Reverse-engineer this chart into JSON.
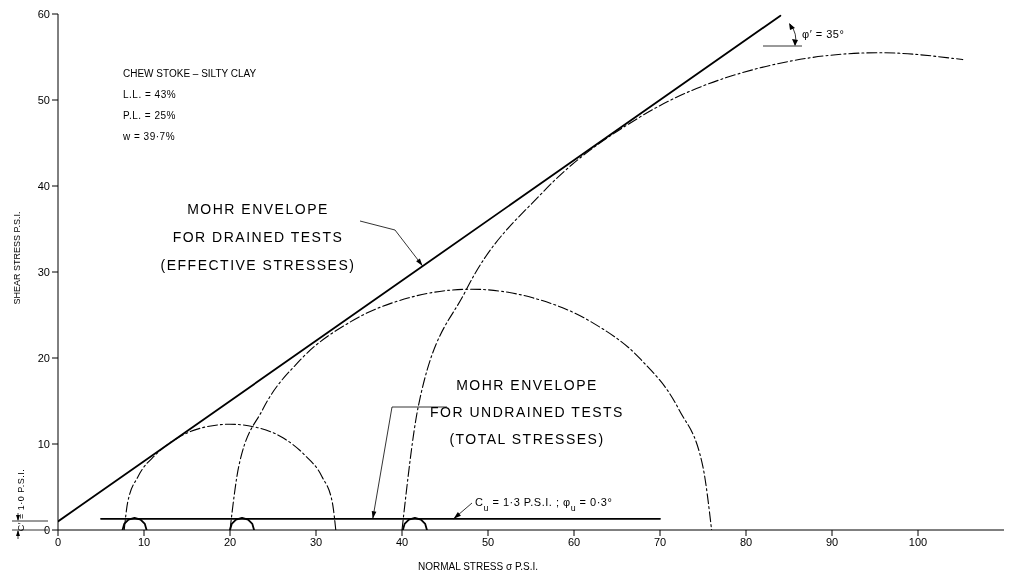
{
  "chart_data": {
    "type": "line",
    "title": "CHEW STOKE – SILTY CLAY",
    "xlabel": "NORMAL STRESS  σ  P.S.I.",
    "ylabel": "SHEAR STRESS  P.S.I.",
    "xlim": [
      0,
      110
    ],
    "xticks": [
      0,
      10,
      20,
      30,
      40,
      50,
      60,
      70,
      80,
      90,
      100
    ],
    "ylim": [
      0,
      60
    ],
    "yticks": [
      0,
      10,
      20,
      30,
      40,
      50,
      60
    ],
    "grid": false,
    "annotations": [
      "L.L. = 43%",
      "P.L. = 25%",
      "w  = 39·7%",
      {
        "text": "MOHR ENVELOPE\nFOR DRAINED TESTS\n(EFFECTIVE STRESSES)",
        "x": 42.4,
        "y": 30.7
      },
      {
        "text": "MOHR ENVELOPE\nFOR UNDRAINED TESTS\n(TOTAL STRESSES)",
        "x": 36.6,
        "y": 1.3
      },
      "φ′ = 35°",
      {
        "text": "C$_{u}$ = 1·3 P.S.I. ;  φ$_{u}$ = 0·3°",
        "x": 46,
        "y": 1.3
      },
      "C′ = 1·0 P.S.I."
    ],
    "series": [
      {
        "color": "#000000",
        "line_style": "solid",
        "x": [
          0,
          84
        ],
        "values": [
          1.0,
          59.8
        ]
      },
      {
        "color": "#000000",
        "line_style": "solid",
        "x": [
          5,
          70
        ],
        "values": [
          1.3,
          1.3
        ]
      },
      {
        "color": "#000000",
        "line_style": "dashed",
        "x": [
          7.7,
          8.1,
          9.3,
          11.3,
          13.9,
          16.8,
          20,
          23.2,
          26.2,
          28.7,
          30.7,
          31.9,
          32.3
        ],
        "values": [
          0,
          3.2,
          6.2,
          8.7,
          10.7,
          11.9,
          12.3,
          11.9,
          10.7,
          8.7,
          6.2,
          3.2,
          0
        ]
      },
      {
        "color": "#000000",
        "line_style": "dashed",
        "x": [
          20,
          21.0,
          23.8,
          28.2,
          34,
          40.8,
          48,
          55.2,
          62,
          67.8,
          72.2,
          75.0,
          76
        ],
        "values": [
          0,
          7.3,
          14,
          19.8,
          24.2,
          27.0,
          28,
          27.0,
          24.2,
          19.8,
          14,
          7.3,
          0
        ]
      },
      {
        "color": "#000000",
        "line_style": "dashed",
        "x": [
          40,
          41.9,
          47.4,
          56.3,
          67.8,
          81.1,
          95.5,
          105.2
        ],
        "values": [
          0,
          14.4,
          27.8,
          39.2,
          48.1,
          53.6,
          55.5,
          54.7
        ]
      },
      {
        "color": "#000000",
        "line_style": "solid",
        "x": [
          7.5,
          7.7,
          8.2,
          8.9,
          9.6,
          10.1,
          10.3
        ],
        "values": [
          0,
          0.7,
          1.2,
          1.4,
          1.2,
          0.7,
          0
        ]
      },
      {
        "color": "#000000",
        "line_style": "solid",
        "x": [
          20,
          20.2,
          20.7,
          21.4,
          22.1,
          22.6,
          22.8
        ],
        "values": [
          0,
          0.7,
          1.2,
          1.4,
          1.2,
          0.7,
          0
        ]
      },
      {
        "color": "#000000",
        "line_style": "solid",
        "x": [
          40.1,
          40.3,
          40.8,
          41.5,
          42.2,
          42.7,
          42.9
        ],
        "values": [
          0,
          0.7,
          1.2,
          1.4,
          1.2,
          0.7,
          0
        ]
      }
    ]
  }
}
